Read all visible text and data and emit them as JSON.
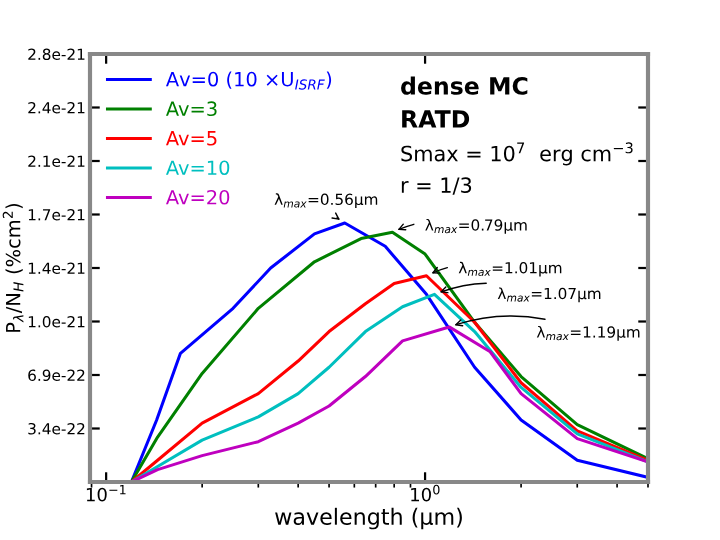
{
  "chart_data": {
    "type": "line",
    "xlabel": "wavelength (μm)",
    "ylabel": "P$_{λ}$/N$_{H}$ (%cm$^{2}$)",
    "log": "x",
    "xlim": [
      0.089,
      5.0
    ],
    "ylim": [
      0,
      2.76e-21
    ],
    "xticks": [
      {
        "value": 0.1,
        "label": "10$^{−1}$"
      },
      {
        "value": 1,
        "label": "10$^{0}$"
      }
    ],
    "yticks": [
      {
        "value": 3.45e-22,
        "label": "3.4e-22"
      },
      {
        "value": 6.9e-22,
        "label": "6.9e-22"
      },
      {
        "value": 1.035e-21,
        "label": "1.0e-21"
      },
      {
        "value": 1.38e-21,
        "label": "1.4e-21"
      },
      {
        "value": 1.725e-21,
        "label": "1.7e-21"
      },
      {
        "value": 2.07e-21,
        "label": "2.1e-21"
      },
      {
        "value": 2.415e-21,
        "label": "2.4e-21"
      },
      {
        "value": 2.76e-21,
        "label": "2.8e-21"
      }
    ],
    "grid": false,
    "legend": "top left",
    "series": [
      {
        "name": "Av=0 (10 ×U$_{ISRF}$)",
        "color": "#0000ff",
        "x": [
          0.12,
          0.144,
          0.171,
          0.25,
          0.328,
          0.45,
          0.56,
          0.75,
          1.01,
          1.43,
          2.0,
          3.0,
          5.0
        ],
        "values": [
          0,
          4e-22,
          8.3e-22,
          1.12e-21,
          1.38e-21,
          1.6e-21,
          1.67e-21,
          1.52e-21,
          1.21e-21,
          7.4e-22,
          4e-22,
          1.4e-22,
          3e-23
        ]
      },
      {
        "name": "Av=3",
        "color": "#008000",
        "x": [
          0.12,
          0.145,
          0.2,
          0.3,
          0.45,
          0.63,
          0.79,
          1.0,
          1.43,
          2.0,
          3.0,
          5.0
        ],
        "values": [
          0,
          2.9e-22,
          7e-22,
          1.12e-21,
          1.42e-21,
          1.57e-21,
          1.61e-21,
          1.47e-21,
          1.03e-21,
          6.8e-22,
          3.7e-22,
          1.5e-22
        ]
      },
      {
        "name": "Av=5",
        "color": "#ff0000",
        "x": [
          0.12,
          0.145,
          0.2,
          0.3,
          0.4,
          0.5,
          0.65,
          0.8,
          1.01,
          1.43,
          2.0,
          3.0,
          5.0
        ],
        "values": [
          0,
          1.4e-22,
          3.8e-22,
          5.7e-22,
          7.8e-22,
          9.7e-22,
          1.15e-21,
          1.28e-21,
          1.33e-21,
          1.03e-21,
          6.4e-22,
          3.3e-22,
          1.4e-22
        ]
      },
      {
        "name": "Av=10",
        "color": "#00bfbf",
        "x": [
          0.12,
          0.145,
          0.2,
          0.3,
          0.4,
          0.5,
          0.65,
          0.85,
          1.07,
          1.43,
          2.0,
          3.0,
          5.0
        ],
        "values": [
          0,
          1e-22,
          2.7e-22,
          4.2e-22,
          5.7e-22,
          7.4e-22,
          9.7e-22,
          1.13e-21,
          1.21e-21,
          9.7e-22,
          6.1e-22,
          3.1e-22,
          1.3e-22
        ]
      },
      {
        "name": "Av=20",
        "color": "#bf00bf",
        "x": [
          0.12,
          0.145,
          0.2,
          0.3,
          0.4,
          0.5,
          0.65,
          0.85,
          1.19,
          1.6,
          2.0,
          3.0,
          5.0
        ],
        "values": [
          0,
          8e-23,
          1.7e-22,
          2.6e-22,
          3.8e-22,
          4.9e-22,
          6.8e-22,
          9.1e-22,
          1e-21,
          8.4e-22,
          5.7e-22,
          2.8e-22,
          1.3e-22
        ]
      }
    ],
    "annotations": [
      "dense MC",
      "RATD",
      "Smax = 10$^{7}$  erg cm$^{−3}$",
      "r = 1/3",
      {
        "text": "λ$_{max}$=0.56μm",
        "x": 0.56,
        "y": 1.67e-21
      },
      {
        "text": "λ$_{max}$=0.79μm",
        "x": 0.79,
        "y": 1.61e-21
      },
      {
        "text": "λ$_{max}$=1.01μm",
        "x": 1.01,
        "y": 1.33e-21
      },
      {
        "text": "λ$_{max}$=1.07μm",
        "x": 1.07,
        "y": 1.21e-21
      },
      {
        "text": "λ$_{max}$=1.19μm",
        "x": 1.19,
        "y": 1e-21
      }
    ]
  }
}
